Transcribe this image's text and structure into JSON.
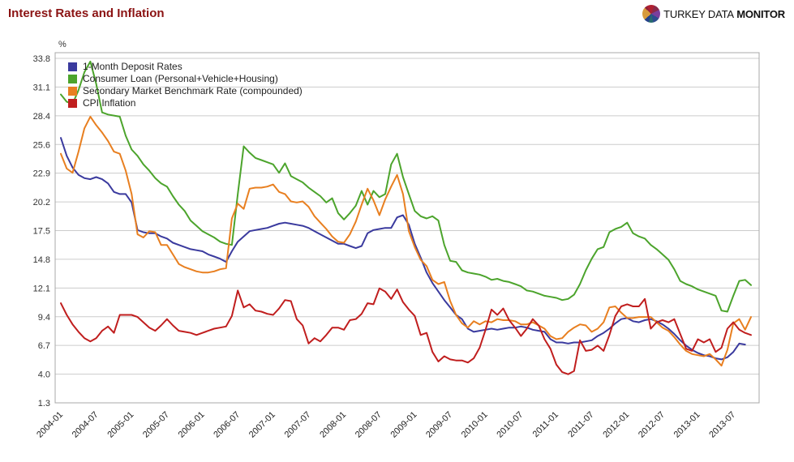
{
  "header": {
    "title": "Interest Rates and Inflation",
    "brand": {
      "name_regular": "TURKEY DATA",
      "name_bold": "MONITOR"
    }
  },
  "colors": {
    "title": "#8b1313",
    "gridline": "#cccccc",
    "plot_border": "#a8a8a8",
    "axis_text": "#333333"
  },
  "chart_data": {
    "type": "line",
    "title": "Interest Rates and Inflation",
    "unit_label": "%",
    "grid": "horizontal-only",
    "legend_position": "top-left-inside",
    "y_axis": {
      "min": 1.3,
      "max": 33.8,
      "tick_labels": [
        "33.8",
        "31.1",
        "28.4",
        "25.6",
        "22.9",
        "20.2",
        "17.5",
        "14.8",
        "12.1",
        "9.4",
        "6.7",
        "4.0",
        "1.3"
      ]
    },
    "x_axis": {
      "interval": "monthly",
      "start": "2004-01",
      "end": "2013-10",
      "tick_every_months": 6,
      "tick_labels": [
        "2004-01",
        "2004-07",
        "2005-01",
        "2005-07",
        "2006-01",
        "2006-07",
        "2007-01",
        "2007-07",
        "2008-01",
        "2008-07",
        "2009-01",
        "2009-07",
        "2010-01",
        "2010-07",
        "2011-01",
        "2011-07",
        "2012-01",
        "2012-07",
        "2013-01",
        "2013-07"
      ]
    },
    "series": [
      {
        "name": "1-Month Deposit Rates",
        "color": "#3a3a9e",
        "values": [
          26.3,
          24.6,
          23.5,
          22.8,
          22.5,
          22.4,
          22.6,
          22.4,
          22.0,
          21.2,
          21.0,
          21.0,
          20.2,
          17.6,
          17.4,
          17.3,
          17.3,
          17.0,
          16.8,
          16.4,
          16.2,
          16.0,
          15.8,
          15.7,
          15.6,
          15.3,
          15.1,
          14.9,
          14.6,
          15.6,
          16.5,
          17.0,
          17.5,
          17.6,
          17.7,
          17.8,
          18.0,
          18.2,
          18.3,
          18.2,
          18.1,
          18.0,
          17.8,
          17.5,
          17.2,
          16.9,
          16.6,
          16.3,
          16.3,
          16.1,
          15.9,
          16.1,
          17.3,
          17.6,
          17.7,
          17.8,
          17.8,
          18.8,
          19.0,
          18.1,
          16.3,
          15.0,
          13.6,
          12.6,
          11.8,
          11.0,
          10.3,
          9.6,
          9.2,
          8.3,
          8.0,
          8.1,
          8.2,
          8.3,
          8.2,
          8.3,
          8.4,
          8.4,
          8.5,
          8.4,
          8.2,
          8.1,
          8.0,
          7.3,
          7.0,
          7.0,
          6.9,
          7.0,
          7.0,
          7.1,
          7.2,
          7.6,
          7.9,
          8.3,
          8.8,
          9.2,
          9.3,
          9.0,
          8.9,
          9.1,
          9.2,
          9.0,
          8.7,
          8.3,
          7.8,
          7.2,
          6.7,
          6.3,
          6.0,
          5.8,
          5.7,
          5.5,
          5.4,
          5.6,
          6.1,
          6.9,
          6.8,
          null
        ]
      },
      {
        "name": "Consumer Loan (Personal+Vehicle+Housing)",
        "color": "#4ca42c",
        "values": [
          30.4,
          29.7,
          29.5,
          30.8,
          32.5,
          33.5,
          31.4,
          28.7,
          28.5,
          28.4,
          28.3,
          26.5,
          25.2,
          24.6,
          23.8,
          23.2,
          22.5,
          22.0,
          21.7,
          20.8,
          20.0,
          19.4,
          18.5,
          18.0,
          17.5,
          17.2,
          16.9,
          16.5,
          16.3,
          16.2,
          21.0,
          25.5,
          24.9,
          24.4,
          24.2,
          24.0,
          23.8,
          23.0,
          23.9,
          22.7,
          22.4,
          22.1,
          21.6,
          21.2,
          20.8,
          20.2,
          20.6,
          19.2,
          18.6,
          19.2,
          19.9,
          21.3,
          20.0,
          21.3,
          20.7,
          21.0,
          23.8,
          24.8,
          22.6,
          21.0,
          19.4,
          18.9,
          18.7,
          18.9,
          18.5,
          16.2,
          14.7,
          14.6,
          13.8,
          13.6,
          13.5,
          13.4,
          13.2,
          12.9,
          13.0,
          12.8,
          12.7,
          12.5,
          12.3,
          11.9,
          11.8,
          11.6,
          11.4,
          11.3,
          11.2,
          11.0,
          11.1,
          11.5,
          12.5,
          13.8,
          14.9,
          15.8,
          16.0,
          17.4,
          17.7,
          17.9,
          18.3,
          17.3,
          17.0,
          16.8,
          16.2,
          15.8,
          15.3,
          14.8,
          13.9,
          12.8,
          12.5,
          12.3,
          12.0,
          11.8,
          11.6,
          11.4,
          10.0,
          9.9,
          11.4,
          12.8,
          12.9,
          12.4
        ]
      },
      {
        "name": "Secondary Market Benchmark Rate (compounded)",
        "color": "#e87f20",
        "values": [
          24.8,
          23.4,
          23.0,
          25.0,
          27.2,
          28.3,
          27.5,
          26.8,
          26.0,
          25.0,
          24.8,
          23.2,
          21.0,
          17.2,
          16.9,
          17.5,
          17.4,
          16.2,
          16.2,
          15.3,
          14.4,
          14.1,
          13.9,
          13.7,
          13.6,
          13.6,
          13.7,
          13.9,
          14.0,
          18.7,
          20.1,
          19.6,
          21.5,
          21.6,
          21.6,
          21.7,
          21.9,
          21.2,
          21.0,
          20.3,
          20.2,
          20.3,
          19.8,
          18.9,
          18.3,
          17.7,
          17.0,
          16.5,
          16.4,
          17.2,
          18.4,
          20.0,
          21.5,
          20.4,
          19.0,
          20.5,
          21.7,
          22.8,
          21.0,
          17.5,
          16.0,
          14.8,
          14.2,
          12.9,
          12.5,
          12.7,
          10.9,
          9.6,
          8.8,
          8.4,
          9.0,
          8.7,
          9.0,
          8.9,
          9.2,
          9.1,
          9.1,
          9.0,
          8.7,
          8.7,
          8.9,
          8.6,
          8.3,
          7.6,
          7.3,
          7.4,
          8.0,
          8.4,
          8.7,
          8.6,
          8.0,
          8.3,
          8.9,
          10.3,
          10.4,
          9.8,
          9.3,
          9.3,
          9.4,
          9.4,
          9.4,
          8.9,
          8.4,
          8.1,
          7.5,
          6.8,
          6.2,
          5.9,
          5.8,
          5.7,
          5.9,
          5.4,
          4.8,
          6.3,
          8.8,
          9.2,
          8.2,
          9.4
        ]
      },
      {
        "name": "CPI Inflation",
        "color": "#c01e1e",
        "values": [
          10.7,
          9.6,
          8.7,
          8.0,
          7.4,
          7.1,
          7.4,
          8.1,
          8.5,
          7.9,
          9.6,
          9.6,
          9.6,
          9.4,
          8.9,
          8.4,
          8.1,
          8.6,
          9.2,
          8.6,
          8.1,
          8.0,
          7.9,
          7.7,
          7.9,
          8.1,
          8.3,
          8.4,
          8.5,
          9.5,
          11.9,
          10.3,
          10.6,
          10.0,
          9.9,
          9.7,
          9.6,
          10.2,
          11.0,
          10.9,
          9.2,
          8.6,
          6.9,
          7.4,
          7.1,
          7.7,
          8.4,
          8.4,
          8.2,
          9.1,
          9.2,
          9.7,
          10.7,
          10.6,
          12.1,
          11.8,
          11.1,
          12.0,
          10.8,
          10.1,
          9.5,
          7.7,
          7.9,
          6.1,
          5.2,
          5.7,
          5.4,
          5.3,
          5.3,
          5.1,
          5.5,
          6.5,
          8.2,
          10.1,
          9.6,
          10.2,
          9.1,
          8.4,
          7.6,
          8.3,
          9.2,
          8.6,
          7.3,
          6.4,
          4.9,
          4.2,
          4.0,
          4.3,
          7.2,
          6.2,
          6.3,
          6.7,
          6.2,
          7.7,
          9.5,
          10.4,
          10.6,
          10.4,
          10.4,
          11.1,
          8.3,
          8.9,
          9.1,
          8.9,
          9.2,
          7.8,
          6.4,
          6.2,
          7.3,
          7.0,
          7.3,
          6.1,
          6.5,
          8.3,
          8.9,
          8.2,
          7.9,
          7.7
        ]
      }
    ]
  }
}
